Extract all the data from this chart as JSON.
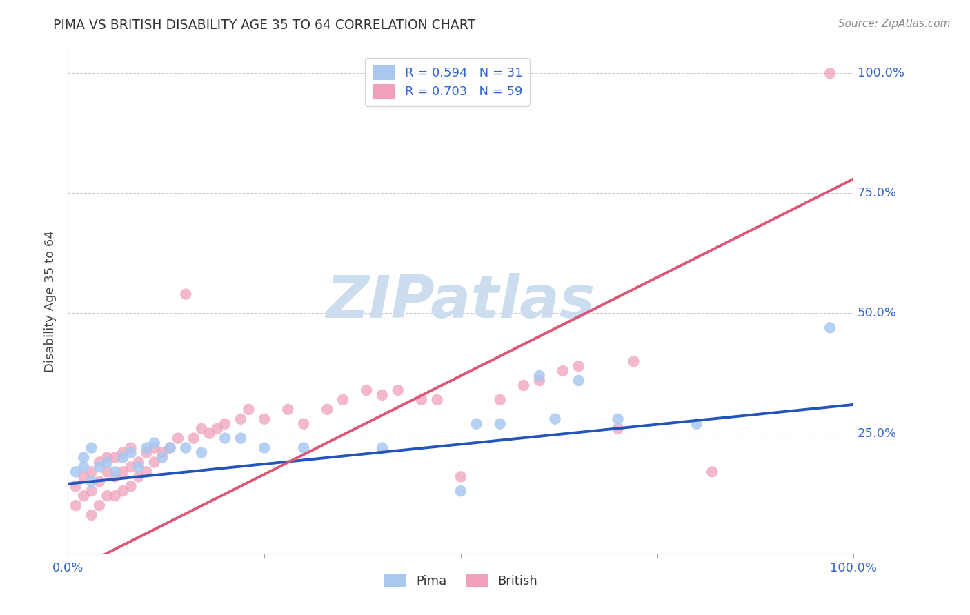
{
  "title": "PIMA VS BRITISH DISABILITY AGE 35 TO 64 CORRELATION CHART",
  "source_text": "Source: ZipAtlas.com",
  "ylabel": "Disability Age 35 to 64",
  "xlim": [
    0.0,
    1.0
  ],
  "ylim": [
    0.0,
    1.05
  ],
  "xticks": [
    0.0,
    0.25,
    0.5,
    0.75,
    1.0
  ],
  "xticklabels": [
    "0.0%",
    "",
    "",
    "",
    "100.0%"
  ],
  "ytick_positions": [
    0.25,
    0.5,
    0.75,
    1.0
  ],
  "ytick_labels": [
    "25.0%",
    "50.0%",
    "75.0%",
    "100.0%"
  ],
  "pima_R": 0.594,
  "pima_N": 31,
  "british_R": 0.703,
  "british_N": 59,
  "pima_color": "#a8c8f0",
  "british_color": "#f0a0b8",
  "pima_line_color": "#2255bb",
  "british_line_color": "#dd5577",
  "watermark": "ZIPatlas",
  "watermark_color": "#ccddf0",
  "legend_color_pima": "#a8c8f0",
  "legend_color_british": "#f0a0b8",
  "pima_line_intercept": 0.145,
  "pima_line_slope": 0.165,
  "british_line_intercept": -0.04,
  "british_line_slope": 0.82,
  "pima_points_x": [
    0.01,
    0.02,
    0.02,
    0.03,
    0.03,
    0.04,
    0.05,
    0.06,
    0.07,
    0.08,
    0.09,
    0.1,
    0.11,
    0.12,
    0.13,
    0.15,
    0.17,
    0.2,
    0.22,
    0.25,
    0.3,
    0.4,
    0.5,
    0.52,
    0.55,
    0.6,
    0.62,
    0.65,
    0.7,
    0.8,
    0.97
  ],
  "pima_points_y": [
    0.17,
    0.18,
    0.2,
    0.15,
    0.22,
    0.18,
    0.19,
    0.17,
    0.2,
    0.21,
    0.18,
    0.22,
    0.23,
    0.2,
    0.22,
    0.22,
    0.21,
    0.24,
    0.24,
    0.22,
    0.22,
    0.22,
    0.13,
    0.27,
    0.27,
    0.37,
    0.28,
    0.36,
    0.28,
    0.27,
    0.47
  ],
  "british_points_x": [
    0.01,
    0.01,
    0.02,
    0.02,
    0.03,
    0.03,
    0.03,
    0.04,
    0.04,
    0.04,
    0.05,
    0.05,
    0.05,
    0.06,
    0.06,
    0.06,
    0.07,
    0.07,
    0.07,
    0.08,
    0.08,
    0.08,
    0.09,
    0.09,
    0.1,
    0.1,
    0.11,
    0.11,
    0.12,
    0.13,
    0.14,
    0.15,
    0.16,
    0.17,
    0.18,
    0.19,
    0.2,
    0.22,
    0.23,
    0.25,
    0.28,
    0.3,
    0.33,
    0.35,
    0.38,
    0.4,
    0.42,
    0.45,
    0.47,
    0.5,
    0.55,
    0.58,
    0.6,
    0.63,
    0.65,
    0.7,
    0.72,
    0.82,
    0.97
  ],
  "british_points_y": [
    0.1,
    0.14,
    0.12,
    0.16,
    0.08,
    0.13,
    0.17,
    0.1,
    0.15,
    0.19,
    0.12,
    0.17,
    0.2,
    0.12,
    0.16,
    0.2,
    0.13,
    0.17,
    0.21,
    0.14,
    0.18,
    0.22,
    0.16,
    0.19,
    0.17,
    0.21,
    0.19,
    0.22,
    0.21,
    0.22,
    0.24,
    0.54,
    0.24,
    0.26,
    0.25,
    0.26,
    0.27,
    0.28,
    0.3,
    0.28,
    0.3,
    0.27,
    0.3,
    0.32,
    0.34,
    0.33,
    0.34,
    0.32,
    0.32,
    0.16,
    0.32,
    0.35,
    0.36,
    0.38,
    0.39,
    0.26,
    0.4,
    0.17,
    1.0
  ]
}
